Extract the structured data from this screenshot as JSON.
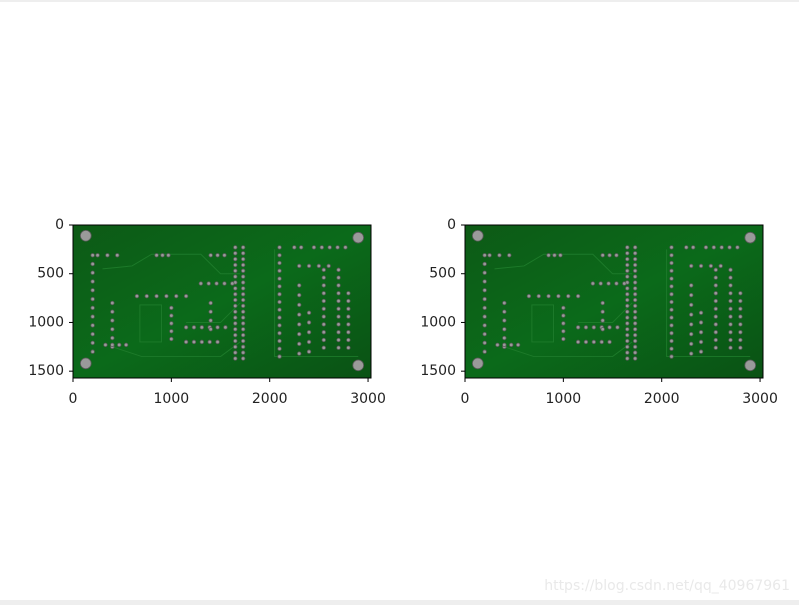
{
  "chart_data": [
    {
      "type": "image",
      "xlim": [
        0,
        3030
      ],
      "ylim": [
        1570,
        0
      ],
      "xticks": [
        0,
        1000,
        2000,
        3000
      ],
      "yticks": [
        0,
        500,
        1000,
        1500
      ]
    },
    {
      "type": "image",
      "xlim": [
        0,
        3030
      ],
      "ylim": [
        1570,
        0
      ],
      "xticks": [
        0,
        1000,
        2000,
        3000
      ],
      "yticks": [
        0,
        500,
        1000,
        1500
      ]
    }
  ],
  "watermark": "https://blog.csdn.net/qq_40967961"
}
